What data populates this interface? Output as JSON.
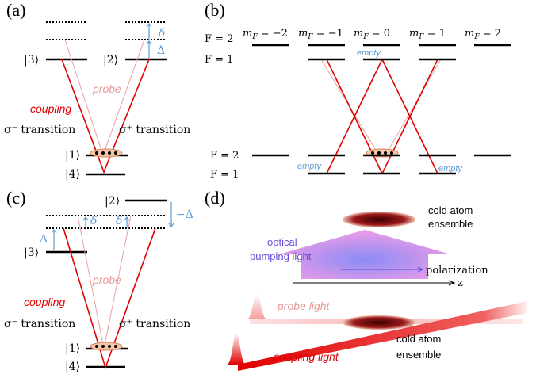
{
  "a": {
    "label": "(a)",
    "k3": "|3⟩",
    "k2": "|2⟩",
    "k1": "|1⟩",
    "k4": "|4⟩",
    "delta": "δ",
    "Delta": "Δ",
    "probe": "probe",
    "coupling": "coupling",
    "sm": "σ⁻ transition",
    "sp": "σ⁺ transition"
  },
  "b": {
    "label": "(b)",
    "m": "m",
    "F": "F",
    "mf": [
      " = −2",
      " = −1",
      " = 0",
      " = 1",
      " = 2"
    ],
    "Fu2": "F = 2",
    "Fu1": "F = 1",
    "Fl2": "F = 2",
    "Fl1": "F = 1",
    "empty": "empty"
  },
  "c": {
    "label": "(c)",
    "k3": "|3⟩",
    "k2": "|2⟩",
    "k1": "|1⟩",
    "k4": "|4⟩",
    "delta": "δ",
    "Delta": "Δ",
    "mDelta": "−Δ",
    "probe": "probe",
    "coupling": "coupling",
    "sm": "σ⁻ transition",
    "sp": "σ⁺ transition"
  },
  "d": {
    "label": "(d)",
    "cold1": "cold atom",
    "ens1": "ensemble",
    "optical": "optical",
    "pumping": "pumping light",
    "polarization": "polarization",
    "z": "z",
    "probe": "probe light",
    "coupling": "coupling light",
    "cold2": "cold atom",
    "ens2": "ensemble"
  }
}
